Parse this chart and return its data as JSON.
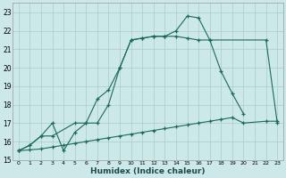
{
  "bg_color": "#cce8e8",
  "grid_color": "#aacccc",
  "line_color": "#1a6a5a",
  "xlabel": "Humidex (Indice chaleur)",
  "xlim": [
    -0.5,
    23.5
  ],
  "ylim": [
    15,
    23.5
  ],
  "yticks": [
    15,
    16,
    17,
    18,
    19,
    20,
    21,
    22,
    23
  ],
  "xticks": [
    0,
    1,
    2,
    3,
    4,
    5,
    6,
    7,
    8,
    9,
    10,
    11,
    12,
    13,
    14,
    15,
    16,
    17,
    18,
    19,
    20,
    21,
    22,
    23
  ],
  "curves": [
    {
      "x": [
        0,
        1,
        2,
        3,
        5,
        6,
        7,
        8,
        9,
        10,
        11,
        12,
        13,
        14,
        15,
        16,
        17,
        22,
        23
      ],
      "y": [
        15.5,
        15.8,
        16.3,
        16.3,
        17.0,
        17.0,
        18.3,
        18.8,
        20.0,
        21.5,
        21.6,
        21.7,
        21.7,
        21.7,
        21.6,
        21.5,
        21.5,
        21.5,
        17.0
      ]
    },
    {
      "x": [
        0,
        1,
        2,
        3,
        4,
        5,
        6,
        7,
        8,
        9,
        10,
        11,
        12,
        13,
        14,
        15,
        16,
        17,
        18,
        19,
        20
      ],
      "y": [
        15.5,
        15.8,
        16.3,
        17.0,
        15.5,
        16.5,
        17.0,
        17.0,
        18.0,
        20.0,
        21.5,
        21.6,
        21.7,
        21.7,
        22.0,
        22.8,
        22.7,
        21.5,
        19.8,
        18.6,
        17.5
      ]
    },
    {
      "x": [
        0,
        1,
        2,
        3,
        4,
        5,
        6,
        7,
        8,
        9,
        10,
        11,
        12,
        13,
        14,
        15,
        16,
        17,
        18,
        19,
        20,
        22,
        23
      ],
      "y": [
        15.5,
        15.55,
        15.6,
        15.7,
        15.8,
        15.9,
        16.0,
        16.1,
        16.2,
        16.3,
        16.4,
        16.5,
        16.6,
        16.7,
        16.8,
        16.9,
        17.0,
        17.1,
        17.2,
        17.3,
        17.0,
        17.1,
        17.1
      ]
    }
  ]
}
